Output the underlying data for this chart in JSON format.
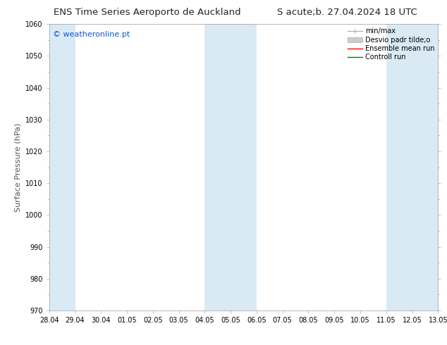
{
  "title_left": "ENS Time Series Aeroporto de Auckland",
  "title_right": "S acute;b. 27.04.2024 18 UTC",
  "ylabel": "Surface Pressure (hPa)",
  "ylim": [
    970,
    1060
  ],
  "yticks": [
    970,
    980,
    990,
    1000,
    1010,
    1020,
    1030,
    1040,
    1050,
    1060
  ],
  "xtick_labels": [
    "28.04",
    "29.04",
    "30.04",
    "01.05",
    "02.05",
    "03.05",
    "04.05",
    "05.05",
    "06.05",
    "07.05",
    "08.05",
    "09.05",
    "10.05",
    "11.05",
    "12.05",
    "13.05"
  ],
  "shaded_ranges": [
    [
      0,
      1
    ],
    [
      6,
      8
    ],
    [
      13,
      15
    ]
  ],
  "shaded_color": "#daeaf5",
  "watermark_text": "© weatheronline.pt",
  "watermark_color": "#1155cc",
  "background_color": "#ffffff",
  "plot_bg_color": "#ffffff",
  "spine_color": "#aaaaaa",
  "tick_color": "#555555",
  "title_fontsize": 9.5,
  "tick_fontsize": 7,
  "label_fontsize": 8,
  "legend_fontsize": 7,
  "minmax_color": "#aaaaaa",
  "desvio_facecolor": "#cccccc",
  "desvio_edgecolor": "#aaaaaa",
  "ensemble_color": "red",
  "control_color": "green"
}
